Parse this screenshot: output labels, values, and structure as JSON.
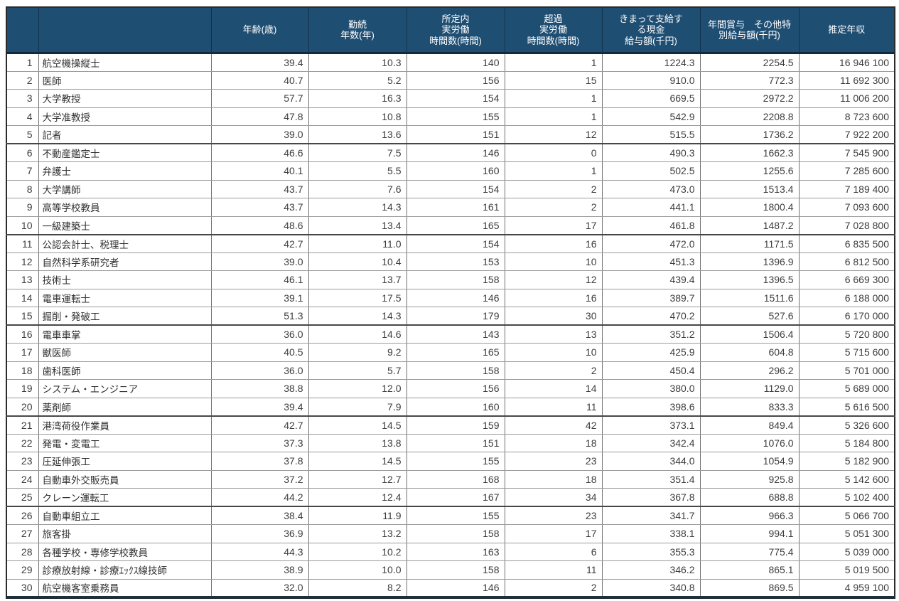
{
  "colors": {
    "header_bg": "#1f4e73",
    "header_text": "#ffffff",
    "body_text": "#3d3d3d",
    "row_line": "#9b9b9b",
    "group_line": "#474747",
    "bottom_edge": "#1f2f3c"
  },
  "chart_data": {
    "type": "table",
    "columns": [
      "",
      "",
      "年齢(歳)",
      "勤続\n年数(年)",
      "所定内\n実労働\n時間数(時間)",
      "超過\n実労働\n時間数(時間)",
      "きまって支給す\nる現金\n給与額(千円)",
      "年間賞与　その他特\n別給与額(千円)",
      "推定年収"
    ],
    "rows": [
      [
        "1",
        "航空機操縦士",
        "39.4",
        "10.3",
        "140",
        "1",
        "1224.3",
        "2254.5",
        "16 946 100"
      ],
      [
        "2",
        "医師",
        "40.7",
        "5.2",
        "156",
        "15",
        "910.0",
        "772.3",
        "11 692 300"
      ],
      [
        "3",
        "大学教授",
        "57.7",
        "16.3",
        "154",
        "1",
        "669.5",
        "2972.2",
        "11 006 200"
      ],
      [
        "4",
        "大学准教授",
        "47.8",
        "10.8",
        "155",
        "1",
        "542.9",
        "2208.8",
        "8 723 600"
      ],
      [
        "5",
        "記者",
        "39.0",
        "13.6",
        "151",
        "12",
        "515.5",
        "1736.2",
        "7 922 200"
      ],
      [
        "6",
        "不動産鑑定士",
        "46.6",
        "7.5",
        "146",
        "0",
        "490.3",
        "1662.3",
        "7 545 900"
      ],
      [
        "7",
        "弁護士",
        "40.1",
        "5.5",
        "160",
        "1",
        "502.5",
        "1255.6",
        "7 285 600"
      ],
      [
        "8",
        "大学講師",
        "43.7",
        "7.6",
        "154",
        "2",
        "473.0",
        "1513.4",
        "7 189 400"
      ],
      [
        "9",
        "高等学校教員",
        "43.7",
        "14.3",
        "161",
        "2",
        "441.1",
        "1800.4",
        "7 093 600"
      ],
      [
        "10",
        "一級建築士",
        "48.6",
        "13.4",
        "165",
        "17",
        "461.8",
        "1487.2",
        "7 028 800"
      ],
      [
        "11",
        "公認会計士、税理士",
        "42.7",
        "11.0",
        "154",
        "16",
        "472.0",
        "1171.5",
        "6 835 500"
      ],
      [
        "12",
        "自然科学系研究者",
        "39.0",
        "10.4",
        "153",
        "10",
        "451.3",
        "1396.9",
        "6 812 500"
      ],
      [
        "13",
        "技術士",
        "46.1",
        "13.7",
        "158",
        "12",
        "439.4",
        "1396.5",
        "6 669 300"
      ],
      [
        "14",
        "電車運転士",
        "39.1",
        "17.5",
        "146",
        "16",
        "389.7",
        "1511.6",
        "6 188 000"
      ],
      [
        "15",
        "掘削・発破工",
        "51.3",
        "14.3",
        "179",
        "30",
        "470.2",
        "527.6",
        "6 170 000"
      ],
      [
        "16",
        "電車車掌",
        "36.0",
        "14.6",
        "143",
        "13",
        "351.2",
        "1506.4",
        "5 720 800"
      ],
      [
        "17",
        "獣医師",
        "40.5",
        "9.2",
        "165",
        "10",
        "425.9",
        "604.8",
        "5 715 600"
      ],
      [
        "18",
        "歯科医師",
        "36.0",
        "5.7",
        "158",
        "2",
        "450.4",
        "296.2",
        "5 701 000"
      ],
      [
        "19",
        "システム・エンジニア",
        "38.8",
        "12.0",
        "156",
        "14",
        "380.0",
        "1129.0",
        "5 689 000"
      ],
      [
        "20",
        "薬剤師",
        "39.4",
        "7.9",
        "160",
        "11",
        "398.6",
        "833.3",
        "5 616 500"
      ],
      [
        "21",
        "港湾荷役作業員",
        "42.7",
        "14.5",
        "159",
        "42",
        "373.1",
        "849.4",
        "5 326 600"
      ],
      [
        "22",
        "発電・変電工",
        "37.3",
        "13.8",
        "151",
        "18",
        "342.4",
        "1076.0",
        "5 184 800"
      ],
      [
        "23",
        "圧延伸張工",
        "37.8",
        "14.5",
        "155",
        "23",
        "344.0",
        "1054.9",
        "5 182 900"
      ],
      [
        "24",
        "自動車外交販売員",
        "37.2",
        "12.7",
        "168",
        "18",
        "351.4",
        "925.8",
        "5 142 600"
      ],
      [
        "25",
        "クレーン運転工",
        "44.2",
        "12.4",
        "167",
        "34",
        "367.8",
        "688.8",
        "5 102 400"
      ],
      [
        "26",
        "自動車組立工",
        "38.4",
        "11.9",
        "155",
        "23",
        "341.7",
        "966.3",
        "5 066 700"
      ],
      [
        "27",
        "旅客掛",
        "36.9",
        "13.2",
        "158",
        "17",
        "338.1",
        "994.1",
        "5 051 300"
      ],
      [
        "28",
        "各種学校・専修学校教員",
        "44.3",
        "10.2",
        "163",
        "6",
        "355.3",
        "775.4",
        "5 039 000"
      ],
      [
        "29",
        "診療放射線・診療ｴｯｸｽ線技師",
        "38.9",
        "10.0",
        "158",
        "11",
        "346.2",
        "865.1",
        "5 019 500"
      ],
      [
        "30",
        "航空機客室乗務員",
        "32.0",
        "8.2",
        "146",
        "2",
        "340.8",
        "869.5",
        "4 959 100"
      ]
    ]
  }
}
